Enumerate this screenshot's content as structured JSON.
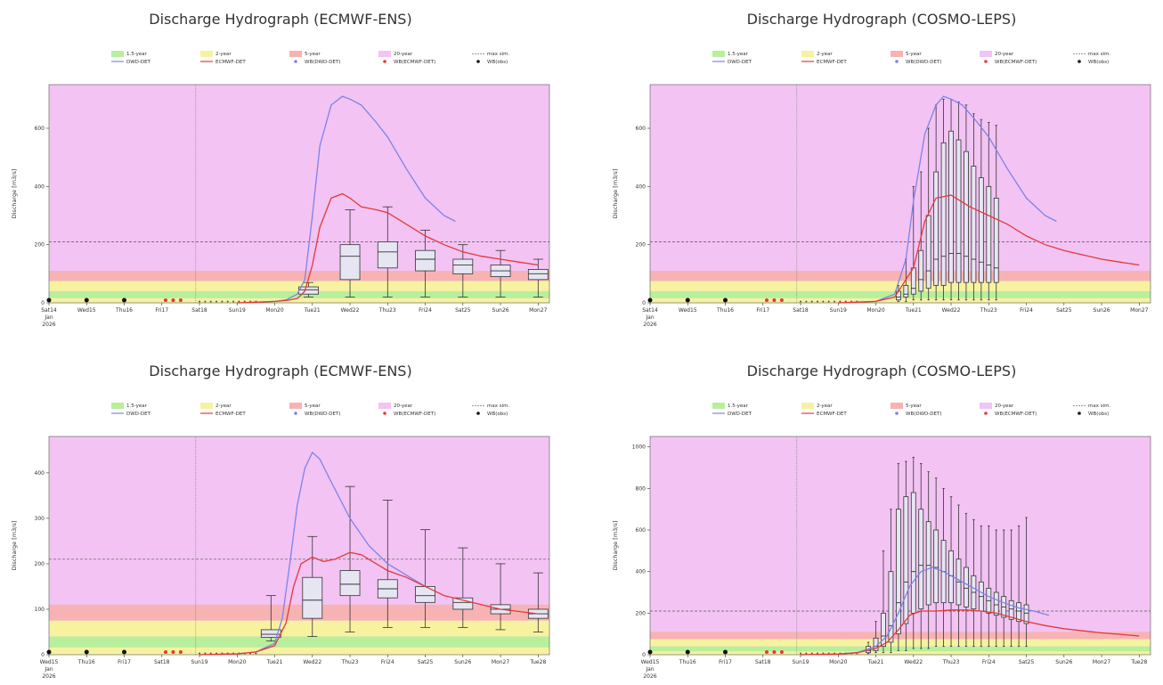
{
  "colors": {
    "bg20": "#f3c3f3",
    "band5": "#f7b3b3",
    "band2": "#f7f2a0",
    "band15": "#b8ef9c",
    "dwd": "#7b84e8",
    "ecmwf": "#e23a3a",
    "box": "#e6e6f2"
  },
  "legend": {
    "y1_5": "1.5-year",
    "y2": "2-year",
    "y5": "5-year",
    "y20": "20-year",
    "maxsim": "max sim.",
    "dwd": "DWD-DET",
    "ecmwf": "ECMWF-DET",
    "wbdwd": "WB(DWD-DET)",
    "wbecmwf": "WB(ECMWF-DET)",
    "wbobs": "WB(obs)"
  },
  "ylabel": "Discharge [m3/s]",
  "chart_data": [
    {
      "type": "line",
      "title": "Discharge Hydrograph (ECMWF-ENS)",
      "ylabel": "Discharge [m3/s]",
      "ylim": [
        0,
        750
      ],
      "yticks": [
        0,
        200,
        400,
        600
      ],
      "xlabels": [
        "Sat14\nJan\n2026",
        "Wed15",
        "Thu16",
        "Fri17",
        "Sat18",
        "Sun19",
        "Mon20",
        "Tue21",
        "Wed22",
        "Thu23",
        "Fri24",
        "Sat25",
        "Sun26",
        "Mon27"
      ],
      "dashed_threshold": 210,
      "bands": {
        "y1_5": 40,
        "y2": 75,
        "y5": 110
      },
      "ecmwf_det": [
        [
          5,
          0
        ],
        [
          5.5,
          2
        ],
        [
          6,
          5
        ],
        [
          6.3,
          8
        ],
        [
          6.6,
          15
        ],
        [
          6.8,
          40
        ],
        [
          7,
          130
        ],
        [
          7.2,
          260
        ],
        [
          7.5,
          360
        ],
        [
          7.8,
          375
        ],
        [
          8,
          360
        ],
        [
          8.3,
          330
        ],
        [
          8.7,
          320
        ],
        [
          9,
          310
        ],
        [
          9.5,
          270
        ],
        [
          10,
          230
        ],
        [
          10.5,
          200
        ],
        [
          11,
          175
        ],
        [
          11.5,
          160
        ],
        [
          12,
          150
        ],
        [
          12.5,
          140
        ],
        [
          13,
          130
        ]
      ],
      "dwd_det": [
        [
          5,
          0
        ],
        [
          5.5,
          2
        ],
        [
          6,
          5
        ],
        [
          6.3,
          10
        ],
        [
          6.6,
          30
        ],
        [
          6.8,
          80
        ],
        [
          7,
          300
        ],
        [
          7.2,
          540
        ],
        [
          7.5,
          680
        ],
        [
          7.8,
          710
        ],
        [
          8,
          700
        ],
        [
          8.3,
          680
        ],
        [
          8.7,
          620
        ],
        [
          9,
          570
        ],
        [
          9.5,
          460
        ],
        [
          10,
          360
        ],
        [
          10.5,
          300
        ],
        [
          10.8,
          280
        ]
      ],
      "boxes": [
        {
          "x": 6.9,
          "min": 20,
          "q1": 30,
          "med": 45,
          "q3": 55,
          "max": 70
        },
        {
          "x": 8,
          "min": 20,
          "q1": 80,
          "med": 160,
          "q3": 200,
          "max": 320
        },
        {
          "x": 9,
          "min": 20,
          "q1": 120,
          "med": 175,
          "q3": 210,
          "max": 330
        },
        {
          "x": 10,
          "min": 20,
          "q1": 110,
          "med": 150,
          "q3": 180,
          "max": 250
        },
        {
          "x": 11,
          "min": 20,
          "q1": 100,
          "med": 130,
          "q3": 150,
          "max": 200
        },
        {
          "x": 12,
          "min": 20,
          "q1": 90,
          "med": 110,
          "q3": 130,
          "max": 180
        },
        {
          "x": 13,
          "min": 20,
          "q1": 80,
          "med": 100,
          "q3": 115,
          "max": 150
        }
      ]
    },
    {
      "type": "line",
      "title": "Discharge Hydrograph (COSMO-LEPS)",
      "ylabel": "Discharge [m3/s]",
      "ylim": [
        0,
        750
      ],
      "yticks": [
        0,
        200,
        400,
        600
      ],
      "xlabels": [
        "Sat14\nJan\n2026",
        "Wed15",
        "Thu16",
        "Fri17",
        "Sat18",
        "Sun19",
        "Mon20",
        "Tue21",
        "Wed22",
        "Thu23",
        "Fri24",
        "Sat25",
        "Sun26",
        "Mon27"
      ],
      "dashed_threshold": 210,
      "bands": {
        "y1_5": 40,
        "y2": 75,
        "y5": 110
      },
      "ecmwf_det": [
        [
          5,
          0
        ],
        [
          6,
          5
        ],
        [
          6.5,
          20
        ],
        [
          7,
          120
        ],
        [
          7.3,
          280
        ],
        [
          7.6,
          360
        ],
        [
          8,
          370
        ],
        [
          8.5,
          330
        ],
        [
          9,
          300
        ],
        [
          9.5,
          270
        ],
        [
          10,
          230
        ],
        [
          10.5,
          200
        ],
        [
          11,
          180
        ],
        [
          11.5,
          165
        ],
        [
          12,
          150
        ],
        [
          12.5,
          140
        ],
        [
          13,
          130
        ]
      ],
      "dwd_det": [
        [
          5,
          0
        ],
        [
          6,
          5
        ],
        [
          6.5,
          30
        ],
        [
          6.8,
          150
        ],
        [
          7,
          350
        ],
        [
          7.3,
          580
        ],
        [
          7.6,
          680
        ],
        [
          7.8,
          710
        ],
        [
          8,
          700
        ],
        [
          8.3,
          680
        ],
        [
          8.7,
          620
        ],
        [
          9,
          570
        ],
        [
          9.5,
          460
        ],
        [
          10,
          360
        ],
        [
          10.5,
          300
        ],
        [
          10.8,
          280
        ]
      ],
      "boxes": [
        {
          "x": 6.6,
          "min": 5,
          "q1": 10,
          "med": 20,
          "q3": 40,
          "max": 60
        },
        {
          "x": 6.8,
          "min": 5,
          "q1": 20,
          "med": 30,
          "q3": 60,
          "max": 150
        },
        {
          "x": 7.0,
          "min": 10,
          "q1": 30,
          "med": 50,
          "q3": 120,
          "max": 400
        },
        {
          "x": 7.2,
          "min": 10,
          "q1": 40,
          "med": 80,
          "q3": 180,
          "max": 450
        },
        {
          "x": 7.4,
          "min": 10,
          "q1": 50,
          "med": 110,
          "q3": 300,
          "max": 600
        },
        {
          "x": 7.6,
          "min": 10,
          "q1": 60,
          "med": 150,
          "q3": 450,
          "max": 680
        },
        {
          "x": 7.8,
          "min": 10,
          "q1": 60,
          "med": 160,
          "q3": 550,
          "max": 700
        },
        {
          "x": 8.0,
          "min": 10,
          "q1": 70,
          "med": 170,
          "q3": 590,
          "max": 700
        },
        {
          "x": 8.2,
          "min": 10,
          "q1": 70,
          "med": 170,
          "q3": 560,
          "max": 690
        },
        {
          "x": 8.4,
          "min": 10,
          "q1": 70,
          "med": 160,
          "q3": 520,
          "max": 680
        },
        {
          "x": 8.6,
          "min": 10,
          "q1": 70,
          "med": 150,
          "q3": 470,
          "max": 650
        },
        {
          "x": 8.8,
          "min": 10,
          "q1": 70,
          "med": 140,
          "q3": 430,
          "max": 630
        },
        {
          "x": 9.0,
          "min": 10,
          "q1": 70,
          "med": 130,
          "q3": 400,
          "max": 620
        },
        {
          "x": 9.2,
          "min": 10,
          "q1": 70,
          "med": 120,
          "q3": 360,
          "max": 610
        }
      ]
    },
    {
      "type": "line",
      "title": "Discharge Hydrograph (ECMWF-ENS)",
      "ylabel": "Discharge [m3/s]",
      "ylim": [
        0,
        480
      ],
      "yticks": [
        0,
        100,
        200,
        300,
        400
      ],
      "xlabels": [
        "Wed15\nJan\n2026",
        "Thu16",
        "Fri17",
        "Sat18",
        "Sun19",
        "Mon20",
        "Tue21",
        "Wed22",
        "Thu23",
        "Fri24",
        "Sat25",
        "Sun26",
        "Mon27",
        "Tue28"
      ],
      "dashed_threshold": 210,
      "bands": {
        "y1_5": 40,
        "y2": 75,
        "y5": 110
      },
      "ecmwf_det": [
        [
          4,
          0
        ],
        [
          5,
          2
        ],
        [
          5.5,
          6
        ],
        [
          6,
          20
        ],
        [
          6.3,
          70
        ],
        [
          6.5,
          150
        ],
        [
          6.7,
          200
        ],
        [
          7,
          215
        ],
        [
          7.3,
          205
        ],
        [
          7.6,
          210
        ],
        [
          8,
          225
        ],
        [
          8.3,
          220
        ],
        [
          8.7,
          200
        ],
        [
          9,
          185
        ],
        [
          9.5,
          170
        ],
        [
          10,
          150
        ],
        [
          10.5,
          130
        ],
        [
          11,
          120
        ],
        [
          11.5,
          110
        ],
        [
          12,
          100
        ],
        [
          12.5,
          95
        ],
        [
          13,
          90
        ]
      ],
      "dwd_det": [
        [
          4,
          0
        ],
        [
          5,
          2
        ],
        [
          5.5,
          6
        ],
        [
          6,
          25
        ],
        [
          6.2,
          80
        ],
        [
          6.4,
          200
        ],
        [
          6.6,
          330
        ],
        [
          6.8,
          410
        ],
        [
          7,
          445
        ],
        [
          7.2,
          430
        ],
        [
          7.5,
          380
        ],
        [
          8,
          300
        ],
        [
          8.5,
          240
        ],
        [
          9,
          200
        ],
        [
          9.5,
          175
        ],
        [
          10,
          150
        ]
      ],
      "boxes": [
        {
          "x": 5.9,
          "min": 30,
          "q1": 38,
          "med": 45,
          "q3": 55,
          "max": 130
        },
        {
          "x": 7,
          "min": 40,
          "q1": 80,
          "med": 120,
          "q3": 170,
          "max": 260
        },
        {
          "x": 8,
          "min": 50,
          "q1": 130,
          "med": 155,
          "q3": 185,
          "max": 370
        },
        {
          "x": 9,
          "min": 60,
          "q1": 125,
          "med": 145,
          "q3": 165,
          "max": 340
        },
        {
          "x": 10,
          "min": 60,
          "q1": 115,
          "med": 130,
          "q3": 150,
          "max": 275
        },
        {
          "x": 11,
          "min": 60,
          "q1": 100,
          "med": 115,
          "q3": 125,
          "max": 235
        },
        {
          "x": 12,
          "min": 55,
          "q1": 90,
          "med": 100,
          "q3": 110,
          "max": 200
        },
        {
          "x": 13,
          "min": 50,
          "q1": 80,
          "med": 90,
          "q3": 100,
          "max": 180
        }
      ]
    },
    {
      "type": "line",
      "title": "Discharge Hydrograph (COSMO-LEPS)",
      "ylabel": "Discharge [m3/s]",
      "ylim": [
        0,
        1050
      ],
      "yticks": [
        0,
        200,
        400,
        600,
        800,
        1000
      ],
      "xlabels": [
        "Wed15\nJan\n2026",
        "Thu16",
        "Fri17",
        "Sat18",
        "Sun19",
        "Mon20",
        "Tue21",
        "Wed22",
        "Thu23",
        "Fri24",
        "Sat25",
        "Sun26",
        "Mon27",
        "Tue28"
      ],
      "dashed_threshold": 210,
      "bands": {
        "y1_5": 40,
        "y2": 75,
        "y5": 110
      },
      "ecmwf_det": [
        [
          4,
          0
        ],
        [
          5,
          3
        ],
        [
          5.5,
          10
        ],
        [
          6,
          30
        ],
        [
          6.3,
          60
        ],
        [
          6.6,
          120
        ],
        [
          6.9,
          190
        ],
        [
          7.2,
          210
        ],
        [
          7.6,
          210
        ],
        [
          8,
          215
        ],
        [
          8.4,
          215
        ],
        [
          8.8,
          210
        ],
        [
          9.2,
          200
        ],
        [
          9.6,
          180
        ],
        [
          10,
          160
        ],
        [
          10.5,
          140
        ],
        [
          11,
          125
        ],
        [
          11.5,
          115
        ],
        [
          12,
          105
        ],
        [
          12.5,
          98
        ],
        [
          13,
          90
        ]
      ],
      "dwd_det": [
        [
          4,
          0
        ],
        [
          5,
          3
        ],
        [
          5.5,
          10
        ],
        [
          6,
          40
        ],
        [
          6.3,
          90
        ],
        [
          6.6,
          200
        ],
        [
          6.9,
          330
        ],
        [
          7.2,
          400
        ],
        [
          7.5,
          420
        ],
        [
          7.8,
          400
        ],
        [
          8.2,
          360
        ],
        [
          8.6,
          320
        ],
        [
          9,
          280
        ],
        [
          9.4,
          250
        ],
        [
          9.8,
          225
        ],
        [
          10.2,
          210
        ],
        [
          10.6,
          190
        ]
      ],
      "boxes": [
        {
          "x": 5.8,
          "min": 5,
          "q1": 10,
          "med": 20,
          "q3": 40,
          "max": 60
        },
        {
          "x": 6.0,
          "min": 10,
          "q1": 20,
          "med": 40,
          "q3": 80,
          "max": 160
        },
        {
          "x": 6.2,
          "min": 10,
          "q1": 40,
          "med": 90,
          "q3": 200,
          "max": 500
        },
        {
          "x": 6.4,
          "min": 10,
          "q1": 60,
          "med": 140,
          "q3": 400,
          "max": 700
        },
        {
          "x": 6.6,
          "min": 20,
          "q1": 100,
          "med": 250,
          "q3": 700,
          "max": 920
        },
        {
          "x": 6.8,
          "min": 20,
          "q1": 150,
          "med": 350,
          "q3": 760,
          "max": 930
        },
        {
          "x": 7.0,
          "min": 30,
          "q1": 200,
          "med": 400,
          "q3": 780,
          "max": 950
        },
        {
          "x": 7.2,
          "min": 30,
          "q1": 220,
          "med": 430,
          "q3": 700,
          "max": 920
        },
        {
          "x": 7.4,
          "min": 30,
          "q1": 240,
          "med": 430,
          "q3": 640,
          "max": 880
        },
        {
          "x": 7.6,
          "min": 40,
          "q1": 250,
          "med": 420,
          "q3": 600,
          "max": 850
        },
        {
          "x": 7.8,
          "min": 40,
          "q1": 250,
          "med": 400,
          "q3": 550,
          "max": 800
        },
        {
          "x": 8.0,
          "min": 40,
          "q1": 250,
          "med": 380,
          "q3": 500,
          "max": 760
        },
        {
          "x": 8.2,
          "min": 40,
          "q1": 240,
          "med": 350,
          "q3": 460,
          "max": 720
        },
        {
          "x": 8.4,
          "min": 40,
          "q1": 230,
          "med": 320,
          "q3": 420,
          "max": 680
        },
        {
          "x": 8.6,
          "min": 40,
          "q1": 220,
          "med": 300,
          "q3": 380,
          "max": 650
        },
        {
          "x": 8.8,
          "min": 40,
          "q1": 210,
          "med": 280,
          "q3": 350,
          "max": 620
        },
        {
          "x": 9.0,
          "min": 40,
          "q1": 200,
          "med": 260,
          "q3": 320,
          "max": 620
        },
        {
          "x": 9.2,
          "min": 40,
          "q1": 190,
          "med": 240,
          "q3": 300,
          "max": 600
        },
        {
          "x": 9.4,
          "min": 40,
          "q1": 180,
          "med": 230,
          "q3": 280,
          "max": 600
        },
        {
          "x": 9.6,
          "min": 40,
          "q1": 170,
          "med": 220,
          "q3": 260,
          "max": 600
        },
        {
          "x": 9.8,
          "min": 40,
          "q1": 160,
          "med": 210,
          "q3": 250,
          "max": 620
        },
        {
          "x": 10.0,
          "min": 40,
          "q1": 150,
          "med": 200,
          "q3": 240,
          "max": 660
        }
      ]
    }
  ]
}
